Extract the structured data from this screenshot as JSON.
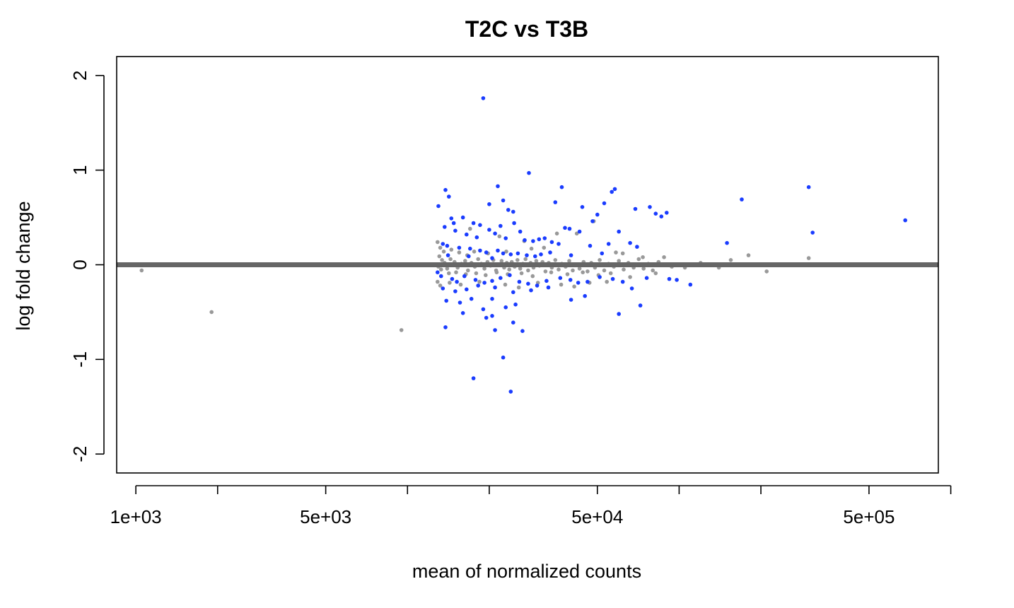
{
  "chart_data": {
    "type": "scatter",
    "title": "T2C vs T3B",
    "xlabel": "mean of normalized counts",
    "ylabel": "log fold change",
    "x_scale": "log10",
    "xlim": [
      850,
      900000
    ],
    "ylim": [
      -2.2,
      2.2
    ],
    "x_ticks": [
      1000,
      2000,
      5000,
      10000,
      20000,
      50000,
      100000,
      200000,
      500000,
      1000000
    ],
    "x_tick_labels": [
      {
        "value": 1000,
        "label": "1e+03"
      },
      {
        "value": 5000,
        "label": "5e+03"
      },
      {
        "value": 50000,
        "label": "5e+04"
      },
      {
        "value": 500000,
        "label": "5e+05"
      }
    ],
    "y_ticks": [
      {
        "value": -2,
        "label": "-2"
      },
      {
        "value": -1,
        "label": "-1"
      },
      {
        "value": 0,
        "label": "0"
      },
      {
        "value": 1,
        "label": "1"
      },
      {
        "value": 2,
        "label": "2"
      }
    ],
    "reference_line": {
      "y": 0,
      "color": "#666666"
    },
    "grid": false,
    "colors": {
      "significant": "#1a3cff",
      "not_significant": "#999999",
      "axis": "#000000"
    },
    "series": [
      {
        "color": "#1a3cff",
        "points": [
          [
            19000,
            1.76
          ],
          [
            28000,
            0.97
          ],
          [
            21500,
            0.83
          ],
          [
            37000,
            0.82
          ],
          [
            58000,
            0.8
          ],
          [
            56500,
            0.77
          ],
          [
            13800,
            0.79
          ],
          [
            14200,
            0.72
          ],
          [
            20000,
            0.64
          ],
          [
            22500,
            0.68
          ],
          [
            35000,
            0.66
          ],
          [
            44000,
            0.61
          ],
          [
            53000,
            0.65
          ],
          [
            23500,
            0.58
          ],
          [
            24500,
            0.56
          ],
          [
            50000,
            0.53
          ],
          [
            69000,
            0.59
          ],
          [
            78000,
            0.61
          ],
          [
            82000,
            0.54
          ],
          [
            86000,
            0.51
          ],
          [
            90000,
            0.55
          ],
          [
            13000,
            0.62
          ],
          [
            300000,
            0.82
          ],
          [
            680000,
            0.47
          ],
          [
            170000,
            0.69
          ],
          [
            14500,
            0.49
          ],
          [
            14800,
            0.44
          ],
          [
            16000,
            0.5
          ],
          [
            17500,
            0.44
          ],
          [
            18500,
            0.42
          ],
          [
            22000,
            0.41
          ],
          [
            24700,
            0.44
          ],
          [
            26000,
            0.35
          ],
          [
            38000,
            0.39
          ],
          [
            39500,
            0.38
          ],
          [
            43000,
            0.35
          ],
          [
            48000,
            0.46
          ],
          [
            60000,
            0.35
          ],
          [
            310000,
            0.34
          ],
          [
            13700,
            0.4
          ],
          [
            15000,
            0.36
          ],
          [
            16500,
            0.32
          ],
          [
            18000,
            0.29
          ],
          [
            20000,
            0.37
          ],
          [
            21000,
            0.33
          ],
          [
            23000,
            0.28
          ],
          [
            27000,
            0.26
          ],
          [
            29000,
            0.25
          ],
          [
            30500,
            0.27
          ],
          [
            32000,
            0.28
          ],
          [
            34000,
            0.24
          ],
          [
            36000,
            0.22
          ],
          [
            47000,
            0.2
          ],
          [
            55000,
            0.22
          ],
          [
            66000,
            0.23
          ],
          [
            70000,
            0.19
          ],
          [
            150000,
            0.23
          ],
          [
            13500,
            0.22
          ],
          [
            14000,
            0.2
          ],
          [
            15500,
            0.18
          ],
          [
            17000,
            0.17
          ],
          [
            18500,
            0.15
          ],
          [
            19500,
            0.13
          ],
          [
            21500,
            0.15
          ],
          [
            22500,
            0.12
          ],
          [
            24000,
            0.11
          ],
          [
            25500,
            0.12
          ],
          [
            27500,
            0.1
          ],
          [
            29500,
            0.09
          ],
          [
            31000,
            0.11
          ],
          [
            33500,
            0.13
          ],
          [
            40000,
            0.1
          ],
          [
            52000,
            0.12
          ],
          [
            14100,
            0.1
          ],
          [
            16800,
            0.09
          ],
          [
            20500,
            0.07
          ],
          [
            12900,
            -0.08
          ],
          [
            13300,
            -0.12
          ],
          [
            14600,
            -0.15
          ],
          [
            15200,
            -0.18
          ],
          [
            16200,
            -0.12
          ],
          [
            17800,
            -0.16
          ],
          [
            19200,
            -0.19
          ],
          [
            20500,
            -0.17
          ],
          [
            22000,
            -0.14
          ],
          [
            23800,
            -0.11
          ],
          [
            25800,
            -0.18
          ],
          [
            27800,
            -0.2
          ],
          [
            30000,
            -0.22
          ],
          [
            32500,
            -0.17
          ],
          [
            36500,
            -0.14
          ],
          [
            39800,
            -0.16
          ],
          [
            42500,
            -0.19
          ],
          [
            46000,
            -0.18
          ],
          [
            51000,
            -0.13
          ],
          [
            57000,
            -0.15
          ],
          [
            62000,
            -0.18
          ],
          [
            67000,
            -0.25
          ],
          [
            76000,
            -0.14
          ],
          [
            92000,
            -0.15
          ],
          [
            98000,
            -0.16
          ],
          [
            110000,
            -0.21
          ],
          [
            13500,
            -0.25
          ],
          [
            15000,
            -0.28
          ],
          [
            16500,
            -0.26
          ],
          [
            18200,
            -0.22
          ],
          [
            21000,
            -0.24
          ],
          [
            24500,
            -0.29
          ],
          [
            28500,
            -0.27
          ],
          [
            33000,
            -0.24
          ],
          [
            13900,
            -0.38
          ],
          [
            15600,
            -0.4
          ],
          [
            17200,
            -0.36
          ],
          [
            19000,
            -0.47
          ],
          [
            20500,
            -0.36
          ],
          [
            23000,
            -0.45
          ],
          [
            25000,
            -0.42
          ],
          [
            40000,
            -0.37
          ],
          [
            45000,
            -0.33
          ],
          [
            72000,
            -0.43
          ],
          [
            16000,
            -0.51
          ],
          [
            19500,
            -0.56
          ],
          [
            20500,
            -0.54
          ],
          [
            24500,
            -0.61
          ],
          [
            21000,
            -0.69
          ],
          [
            26500,
            -0.7
          ],
          [
            13800,
            -0.66
          ],
          [
            60000,
            -0.52
          ],
          [
            22500,
            -0.98
          ],
          [
            17500,
            -1.2
          ],
          [
            24000,
            -1.34
          ]
        ]
      },
      {
        "color": "#999999",
        "points": [
          [
            1050,
            -0.06
          ],
          [
            1900,
            -0.5
          ],
          [
            9500,
            -0.69
          ],
          [
            12900,
            0.24
          ],
          [
            13200,
            0.18
          ],
          [
            13600,
            0.14
          ],
          [
            13100,
            0.09
          ],
          [
            13400,
            0.05
          ],
          [
            13700,
            0.02
          ],
          [
            13000,
            -0.02
          ],
          [
            13300,
            -0.05
          ],
          [
            14000,
            -0.04
          ],
          [
            14400,
            0.06
          ],
          [
            14900,
            0.03
          ],
          [
            15300,
            -0.03
          ],
          [
            15800,
            0.01
          ],
          [
            16300,
            0.04
          ],
          [
            16700,
            -0.06
          ],
          [
            17200,
            0.02
          ],
          [
            17700,
            -0.02
          ],
          [
            18200,
            0.06
          ],
          [
            18700,
            0.01
          ],
          [
            19200,
            -0.04
          ],
          [
            19700,
            0.03
          ],
          [
            20200,
            -0.01
          ],
          [
            20700,
            0.05
          ],
          [
            21200,
            -0.06
          ],
          [
            21700,
            0.0
          ],
          [
            22200,
            0.04
          ],
          [
            22700,
            -0.03
          ],
          [
            23200,
            0.02
          ],
          [
            23700,
            -0.05
          ],
          [
            24200,
            0.03
          ],
          [
            24800,
            -0.02
          ],
          [
            25400,
            0.05
          ],
          [
            26000,
            -0.04
          ],
          [
            26600,
            0.01
          ],
          [
            27200,
            0.06
          ],
          [
            27800,
            -0.06
          ],
          [
            28400,
            0.02
          ],
          [
            29100,
            -0.03
          ],
          [
            29800,
            0.04
          ],
          [
            30600,
            -0.01
          ],
          [
            31400,
            0.03
          ],
          [
            32200,
            -0.07
          ],
          [
            33100,
            0.02
          ],
          [
            34000,
            -0.03
          ],
          [
            35000,
            0.05
          ],
          [
            36000,
            -0.05
          ],
          [
            37000,
            0.01
          ],
          [
            38200,
            -0.02
          ],
          [
            39400,
            0.04
          ],
          [
            40600,
            -0.06
          ],
          [
            41800,
            0.0
          ],
          [
            43000,
            -0.04
          ],
          [
            44500,
            0.03
          ],
          [
            46000,
            -0.07
          ],
          [
            47500,
            0.02
          ],
          [
            49000,
            -0.03
          ],
          [
            51000,
            0.05
          ],
          [
            53000,
            -0.06
          ],
          [
            55000,
            0.01
          ],
          [
            57500,
            -0.02
          ],
          [
            60000,
            0.04
          ],
          [
            62500,
            -0.05
          ],
          [
            65000,
            0.02
          ],
          [
            68000,
            -0.03
          ],
          [
            71000,
            0.06
          ],
          [
            74000,
            -0.04
          ],
          [
            77000,
            0.01
          ],
          [
            80000,
            -0.06
          ],
          [
            84000,
            0.03
          ],
          [
            88000,
            0.08
          ],
          [
            94000,
            -0.02
          ],
          [
            105000,
            -0.03
          ],
          [
            120000,
            0.02
          ],
          [
            140000,
            -0.03
          ],
          [
            155000,
            0.05
          ],
          [
            180000,
            0.1
          ],
          [
            210000,
            -0.07
          ],
          [
            300000,
            0.07
          ],
          [
            14500,
            0.16
          ],
          [
            15500,
            0.13
          ],
          [
            16600,
            0.1
          ],
          [
            17600,
            0.14
          ],
          [
            19800,
            0.12
          ],
          [
            23100,
            0.14
          ],
          [
            26900,
            0.25
          ],
          [
            28600,
            0.17
          ],
          [
            31800,
            0.18
          ],
          [
            35500,
            0.33
          ],
          [
            42000,
            0.33
          ],
          [
            48500,
            0.46
          ],
          [
            58500,
            0.13
          ],
          [
            62000,
            0.12
          ],
          [
            73500,
            0.08
          ],
          [
            14200,
            -0.09
          ],
          [
            15100,
            -0.08
          ],
          [
            16400,
            -0.1
          ],
          [
            17900,
            -0.09
          ],
          [
            19400,
            -0.11
          ],
          [
            21300,
            -0.08
          ],
          [
            23400,
            -0.1
          ],
          [
            26300,
            -0.09
          ],
          [
            28900,
            -0.12
          ],
          [
            33800,
            -0.08
          ],
          [
            38800,
            -0.1
          ],
          [
            44200,
            -0.08
          ],
          [
            50500,
            -0.11
          ],
          [
            56000,
            -0.09
          ],
          [
            17000,
            0.38
          ],
          [
            21800,
            0.3
          ],
          [
            12900,
            -0.18
          ],
          [
            13200,
            -0.22
          ],
          [
            14300,
            -0.19
          ],
          [
            15700,
            -0.21
          ],
          [
            18400,
            -0.18
          ],
          [
            22900,
            -0.21
          ],
          [
            25700,
            -0.24
          ],
          [
            30200,
            -0.19
          ],
          [
            36800,
            -0.21
          ],
          [
            41100,
            -0.23
          ],
          [
            46800,
            -0.19
          ],
          [
            54200,
            -0.18
          ],
          [
            66000,
            -0.13
          ],
          [
            82000,
            -0.09
          ]
        ]
      }
    ]
  }
}
